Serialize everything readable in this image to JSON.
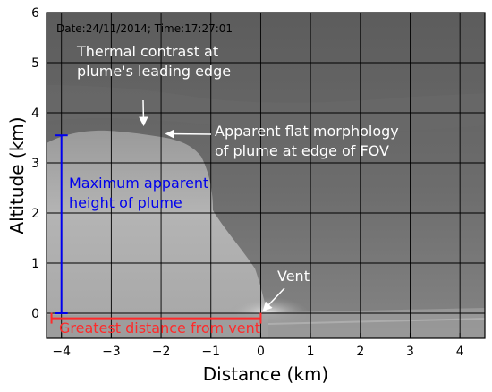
{
  "chart_data": {
    "type": "image-plot",
    "xlabel": "Distance (km)",
    "ylabel": "Altitude (km)",
    "xlim": [
      -4.3,
      4.5
    ],
    "ylim": [
      -0.5,
      6
    ],
    "xticks": [
      -4,
      -3,
      -2,
      -1,
      0,
      1,
      2,
      3,
      4
    ],
    "xtick_labels": [
      "−4",
      "−3",
      "−2",
      "−1",
      "0",
      "1",
      "2",
      "3",
      "4"
    ],
    "yticks": [
      0,
      1,
      2,
      3,
      4,
      5,
      6
    ],
    "ytick_labels": [
      "0",
      "1",
      "2",
      "3",
      "4",
      "5",
      "6"
    ],
    "grid": true,
    "timestamp": "Date:24/11/2014; Time:17:27:01",
    "annotations": [
      {
        "id": "thermal",
        "lines": [
          "Thermal contrast at",
          "plume's leading edge"
        ],
        "color": "#ffffff",
        "arrow_to": [
          -2.35,
          3.75
        ]
      },
      {
        "id": "flat",
        "lines": [
          "Apparent flat morphology",
          "of plume at edge of FOV"
        ],
        "color": "#ffffff",
        "arrow_to": [
          -1.9,
          3.58
        ]
      },
      {
        "id": "maxheight",
        "lines": [
          "Maximum apparent",
          "height of plume"
        ],
        "color": "#0000ee",
        "vertical_bar": {
          "x": -4.0,
          "y0": 0,
          "y1": 3.55
        }
      },
      {
        "id": "vent",
        "lines": [
          "Vent"
        ],
        "color": "#ffffff",
        "arrow_to": [
          0.05,
          0.05
        ]
      },
      {
        "id": "distance",
        "lines": [
          "Greatest distance from vent"
        ],
        "color": "#ff2a2a",
        "horizontal_bar": {
          "x0": -4.2,
          "x1": 0,
          "y": -0.1
        }
      }
    ]
  }
}
